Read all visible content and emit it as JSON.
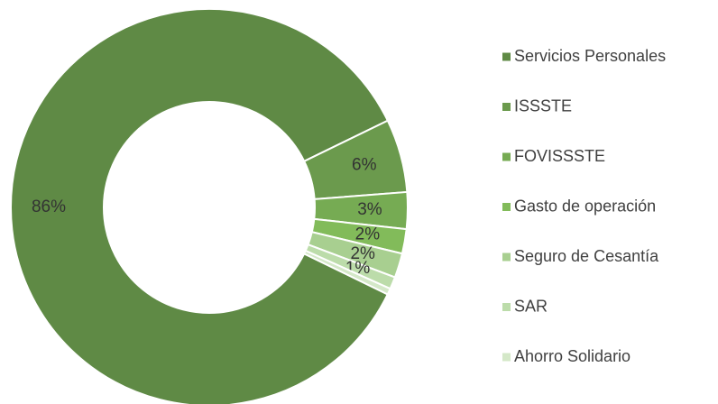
{
  "chart_data": {
    "type": "donut",
    "categories": [
      "Servicios Personales",
      "ISSSTE",
      "FOVISSSTE",
      "Gasto de operación",
      "Seguro de Cesantía",
      "SAR",
      "Ahorro Solidario"
    ],
    "values": [
      86,
      6,
      3,
      2,
      2,
      1,
      0.5
    ],
    "value_labels": [
      "86%",
      "6%",
      "3%",
      "2%",
      "2%",
      "1%",
      null
    ],
    "colors": [
      "#5f8a45",
      "#6b9a4d",
      "#76ab53",
      "#82bb5a",
      "#a8cf90",
      "#bcdcaa",
      "#d4e8c8"
    ],
    "legend": "right"
  }
}
